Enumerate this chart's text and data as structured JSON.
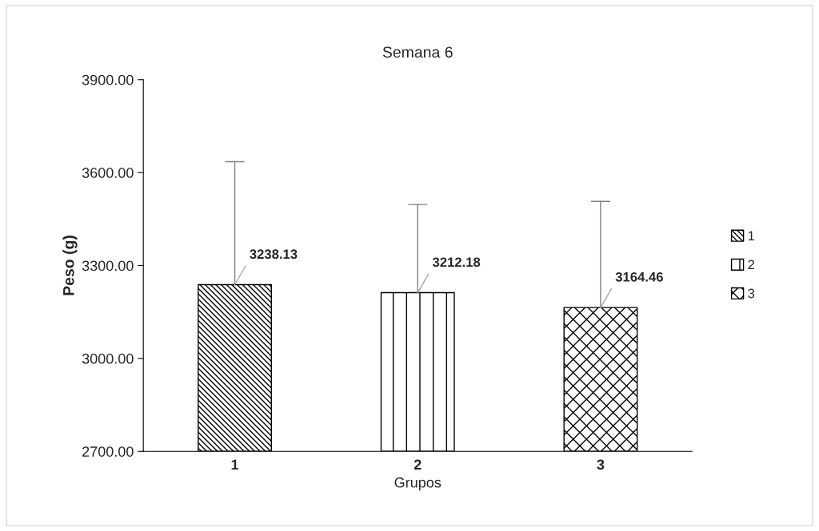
{
  "chart_data": {
    "type": "bar",
    "title": "Semana 6",
    "xlabel": "Grupos",
    "ylabel": "Peso (g)",
    "categories": [
      "1",
      "2",
      "3"
    ],
    "series": [
      {
        "name": "1",
        "color": "#000000",
        "values": [
          3238.13,
          null,
          null
        ],
        "errors": [
          [
            3238.13,
            3635
          ],
          null,
          null
        ]
      },
      {
        "name": "2",
        "color": "#000000",
        "values": [
          null,
          3212.18,
          null
        ],
        "errors": [
          null,
          [
            3212.18,
            3497
          ],
          null
        ]
      },
      {
        "name": "3",
        "color": "#000000",
        "values": [
          null,
          null,
          3164.46
        ],
        "errors": [
          null,
          null,
          [
            3164.46,
            3507
          ]
        ]
      }
    ],
    "ylim": [
      2700,
      3900
    ],
    "yticks": [
      {
        "value": 2700,
        "label": "2700.00"
      },
      {
        "value": 3000,
        "label": "3000.00"
      },
      {
        "value": 3300,
        "label": "3300.00"
      },
      {
        "value": 3600,
        "label": "3600.00"
      },
      {
        "value": 3900,
        "label": "3900.00"
      }
    ],
    "data_labels": true,
    "grid": false,
    "legend": "right"
  }
}
